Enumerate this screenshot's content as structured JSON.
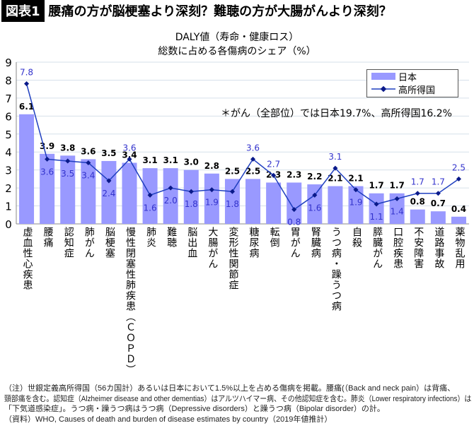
{
  "header": {
    "badge": "図表1",
    "title": "腰痛の方が脳梗塞より深刻？難聴の方が大腸がんより深刻？"
  },
  "chart_data": {
    "type": "bar",
    "title": "DALY値（寿命・健康ロス）",
    "subtitle": "総数に占める各傷病のシェア（%）",
    "ylim": [
      0,
      9
    ],
    "yticks": [
      0,
      1,
      2,
      3,
      4,
      5,
      6,
      7,
      8,
      9
    ],
    "grid": true,
    "legend_placement": "top-right",
    "categories": [
      "虚血性心疾患",
      "腰痛",
      "認知症",
      "肺がん",
      "脳梗塞",
      "慢性閉塞性肺疾患（ＣＯＰＤ）",
      "肺炎",
      "難聴",
      "脳出血",
      "大腸がん",
      "変形性関節症",
      "糖尿病",
      "転倒",
      "胃がん",
      "腎臓病",
      "うつ病・躁うつ病",
      "自殺",
      "膵臓がん",
      "口腔疾患",
      "不安障害",
      "道路事故",
      "薬物乱用"
    ],
    "series": [
      {
        "name": "日本",
        "type": "bar",
        "color": "#9999ff",
        "values": [
          6.1,
          3.9,
          3.8,
          3.6,
          3.5,
          3.4,
          3.1,
          3.1,
          3.0,
          2.8,
          2.5,
          2.5,
          2.3,
          2.3,
          2.2,
          2.1,
          2.1,
          1.7,
          1.7,
          0.8,
          0.7,
          0.4
        ]
      },
      {
        "name": "高所得国",
        "type": "line",
        "color": "#1f3fbf",
        "values": [
          7.8,
          3.6,
          3.5,
          3.4,
          2.4,
          3.6,
          1.6,
          2.0,
          1.8,
          1.9,
          1.8,
          3.6,
          2.7,
          0.8,
          1.6,
          3.1,
          1.9,
          1.1,
          1.4,
          1.7,
          1.7,
          2.5
        ]
      }
    ],
    "annotation": "＊がん（全部位）では日本19.7%、高所得国16.2%"
  },
  "notes": [
    "（注）世銀定義高所得国（56カ国計）あるいは日本において1.5%以上を占める傷病を掲載。腰痛(（Back and neck pain）は背痛、",
    "頸部痛を含む。認知症（Alzheimer disease and other dementias）はアルツハイマー病、その他認知症を含む。肺炎（Lower respiratory infections）は",
    "「下気道感染症」。うつ病・躁うつ病はうつ病（Depressive disorders）と躁うつ病（Bipolar disorder）の計。",
    "（資料）WHO, Causes of death and burden of disease estimates by country（2019年値推計）"
  ]
}
